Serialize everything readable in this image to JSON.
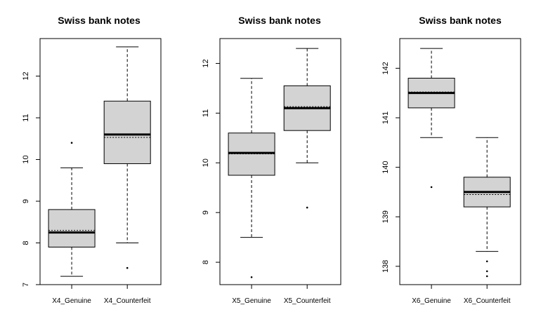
{
  "chart_data": [
    {
      "type": "boxplot",
      "title": "Swiss bank notes",
      "categories": [
        "X4_Genuine",
        "X4_Counterfeit"
      ],
      "ylim": [
        7.0,
        12.9
      ],
      "yticks": [
        7,
        8,
        9,
        10,
        11,
        12
      ],
      "grid": false,
      "boxes": [
        {
          "name": "X4_Genuine",
          "whisker_low": 7.2,
          "q1": 7.9,
          "median": 8.25,
          "mean": 8.3,
          "q3": 8.8,
          "whisker_high": 9.8,
          "outliers": [
            10.4
          ]
        },
        {
          "name": "X4_Counterfeit",
          "whisker_low": 8.0,
          "q1": 9.9,
          "median": 10.6,
          "mean": 10.53,
          "q3": 11.4,
          "whisker_high": 12.7,
          "outliers": [
            7.4
          ]
        }
      ]
    },
    {
      "type": "boxplot",
      "title": "Swiss bank notes",
      "categories": [
        "X5_Genuine",
        "X5_Counterfeit"
      ],
      "ylim": [
        7.55,
        12.5
      ],
      "yticks": [
        8,
        9,
        10,
        11,
        12
      ],
      "grid": false,
      "boxes": [
        {
          "name": "X5_Genuine",
          "whisker_low": 8.5,
          "q1": 9.75,
          "median": 10.2,
          "mean": 10.18,
          "q3": 10.6,
          "whisker_high": 11.7,
          "outliers": [
            7.7
          ]
        },
        {
          "name": "X5_Counterfeit",
          "whisker_low": 10.0,
          "q1": 10.65,
          "median": 11.1,
          "mean": 11.13,
          "q3": 11.55,
          "whisker_high": 12.3,
          "outliers": [
            9.1
          ]
        }
      ]
    },
    {
      "type": "boxplot",
      "title": "Swiss bank notes",
      "categories": [
        "X6_Genuine",
        "X6_Counterfeit"
      ],
      "ylim": [
        137.63,
        142.6
      ],
      "yticks": [
        138,
        139,
        140,
        141,
        142
      ],
      "grid": false,
      "boxes": [
        {
          "name": "X6_Genuine",
          "whisker_low": 140.6,
          "q1": 141.2,
          "median": 141.5,
          "mean": 141.52,
          "q3": 141.8,
          "whisker_high": 142.4,
          "outliers": [
            139.6
          ]
        },
        {
          "name": "X6_Counterfeit",
          "whisker_low": 138.3,
          "q1": 139.2,
          "median": 139.5,
          "mean": 139.45,
          "q3": 139.8,
          "whisker_high": 140.6,
          "outliers": [
            138.1,
            137.9,
            137.8
          ]
        }
      ]
    }
  ]
}
